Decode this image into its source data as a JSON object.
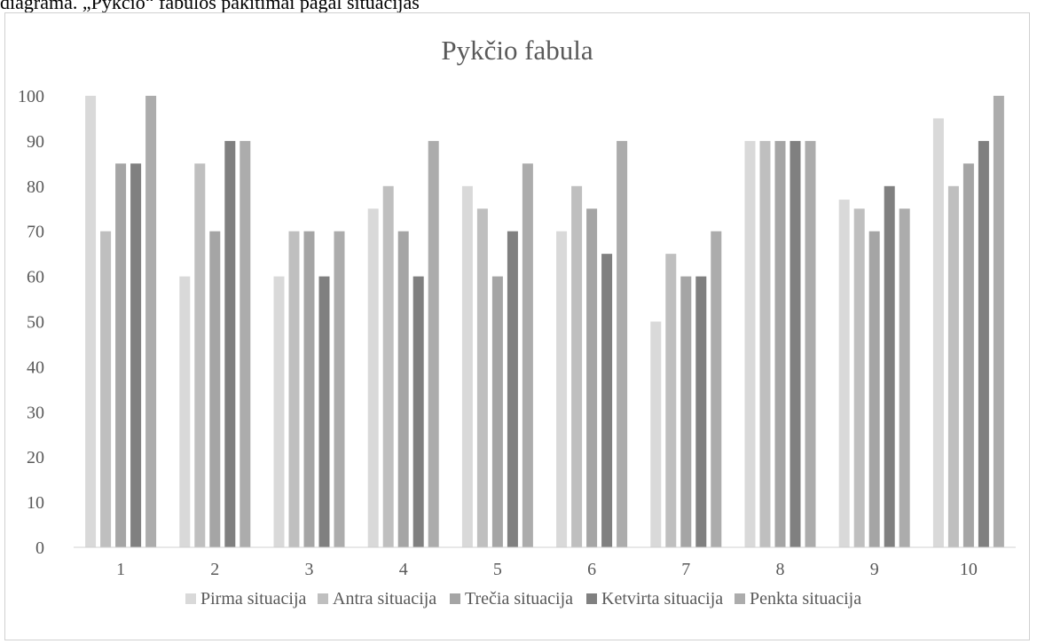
{
  "caption": "diagrama. „Pykčio“ fabulos pakitimai pagal situacijas",
  "chart_data": {
    "type": "bar",
    "title": "Pykčio fabula",
    "xlabel": "",
    "ylabel": "",
    "ylim": [
      0,
      100
    ],
    "yticks": [
      0,
      10,
      20,
      30,
      40,
      50,
      60,
      70,
      80,
      90,
      100
    ],
    "grid": false,
    "legend": "bottom",
    "categories": [
      "1",
      "2",
      "3",
      "4",
      "5",
      "6",
      "7",
      "8",
      "9",
      "10"
    ],
    "series": [
      {
        "name": "Pirma situacija",
        "color": "#d9d9d9",
        "values": [
          100,
          60,
          60,
          75,
          80,
          70,
          50,
          90,
          77,
          95
        ]
      },
      {
        "name": "Antra situacija",
        "color": "#bfbfbf",
        "values": [
          70,
          85,
          70,
          80,
          75,
          80,
          65,
          90,
          75,
          80
        ]
      },
      {
        "name": "Trečia situacija",
        "color": "#a5a5a5",
        "values": [
          85,
          70,
          70,
          70,
          60,
          75,
          60,
          90,
          70,
          85
        ]
      },
      {
        "name": "Ketvirta situacija",
        "color": "#808080",
        "values": [
          85,
          90,
          60,
          60,
          70,
          65,
          60,
          90,
          80,
          90
        ]
      },
      {
        "name": "Penkta situacija",
        "color": "#acacac",
        "values": [
          100,
          90,
          70,
          90,
          85,
          90,
          70,
          90,
          75,
          100
        ]
      }
    ]
  }
}
